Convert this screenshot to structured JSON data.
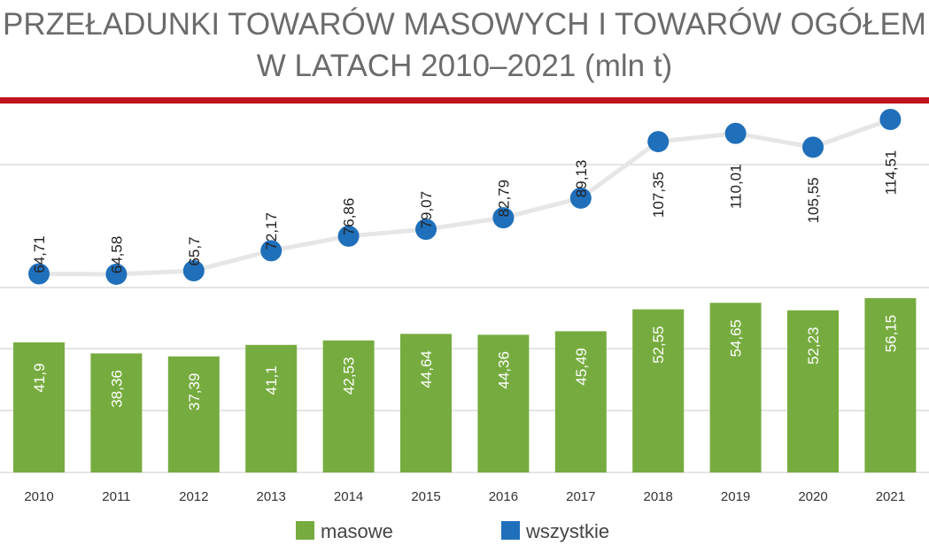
{
  "title": {
    "line1": "PRZEŁADUNKI TOWARÓW MASOWYCH I TOWARÓW OGÓŁEM",
    "line2": "W LATACH 2010–2021 (mln t)"
  },
  "colors": {
    "accent_bar": "#c0141c",
    "masowe": "#76ac3f",
    "wszystkie": "#1f6fba",
    "line": "#e6e6e6",
    "grid": "#c8c8c8"
  },
  "chart_data": {
    "type": "bar+line",
    "title": "PRZEŁADUNKI TOWARÓW MASOWYCH I TOWARÓW OGÓŁEM W LATACH 2010–2021 (mln t)",
    "categories": [
      "2010",
      "2011",
      "2012",
      "2013",
      "2014",
      "2015",
      "2016",
      "2017",
      "2018",
      "2019",
      "2020",
      "2021"
    ],
    "series": [
      {
        "name": "masowe",
        "type": "bar",
        "values": [
          41.9,
          38.36,
          37.39,
          41.1,
          42.53,
          44.64,
          44.36,
          45.49,
          52.55,
          54.65,
          52.23,
          56.15
        ],
        "labels": [
          "41,9",
          "38,36",
          "37,39",
          "41,1",
          "42,53",
          "44,64",
          "44,36",
          "45,49",
          "52,55",
          "54,65",
          "52,23",
          "56,15"
        ]
      },
      {
        "name": "wszystkie",
        "type": "line",
        "values": [
          64.71,
          64.58,
          65.7,
          72.17,
          76.86,
          79.07,
          82.79,
          89.13,
          107.35,
          110.01,
          105.55,
          114.51
        ],
        "labels": [
          "64,71",
          "64,58",
          "65,7",
          "72,17",
          "76,86",
          "79,07",
          "82,79",
          "89,13",
          "107,35",
          "110,01",
          "105,55",
          "114,51"
        ]
      }
    ],
    "grid": true,
    "legend": "bottom-center"
  }
}
